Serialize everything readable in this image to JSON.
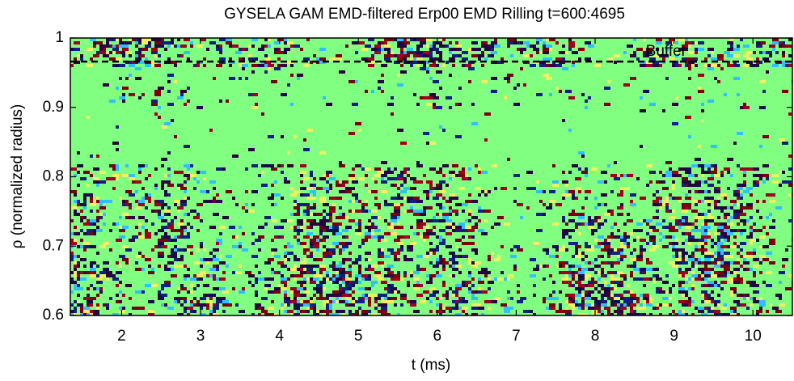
{
  "chart_data": {
    "type": "heatmap",
    "title": "GYSELA GAM EMD-filtered Erp00 EMD Rilling t=600:4695",
    "x_label": "t (ms)",
    "y_label": "ρ (normalized radius)",
    "xlim": [
      1.35,
      10.5
    ],
    "xticks": [
      2,
      3,
      4,
      5,
      6,
      7,
      8,
      9,
      10
    ],
    "ylim": [
      0.6,
      1
    ],
    "yticks": [
      0.6,
      0.7,
      0.8,
      0.9,
      1
    ],
    "annotations": [
      {
        "text": "Buffer",
        "x": 8.9,
        "y": 0.98
      }
    ],
    "hline": {
      "y": 0.966,
      "color": "#000000",
      "dashed": true
    }
  }
}
